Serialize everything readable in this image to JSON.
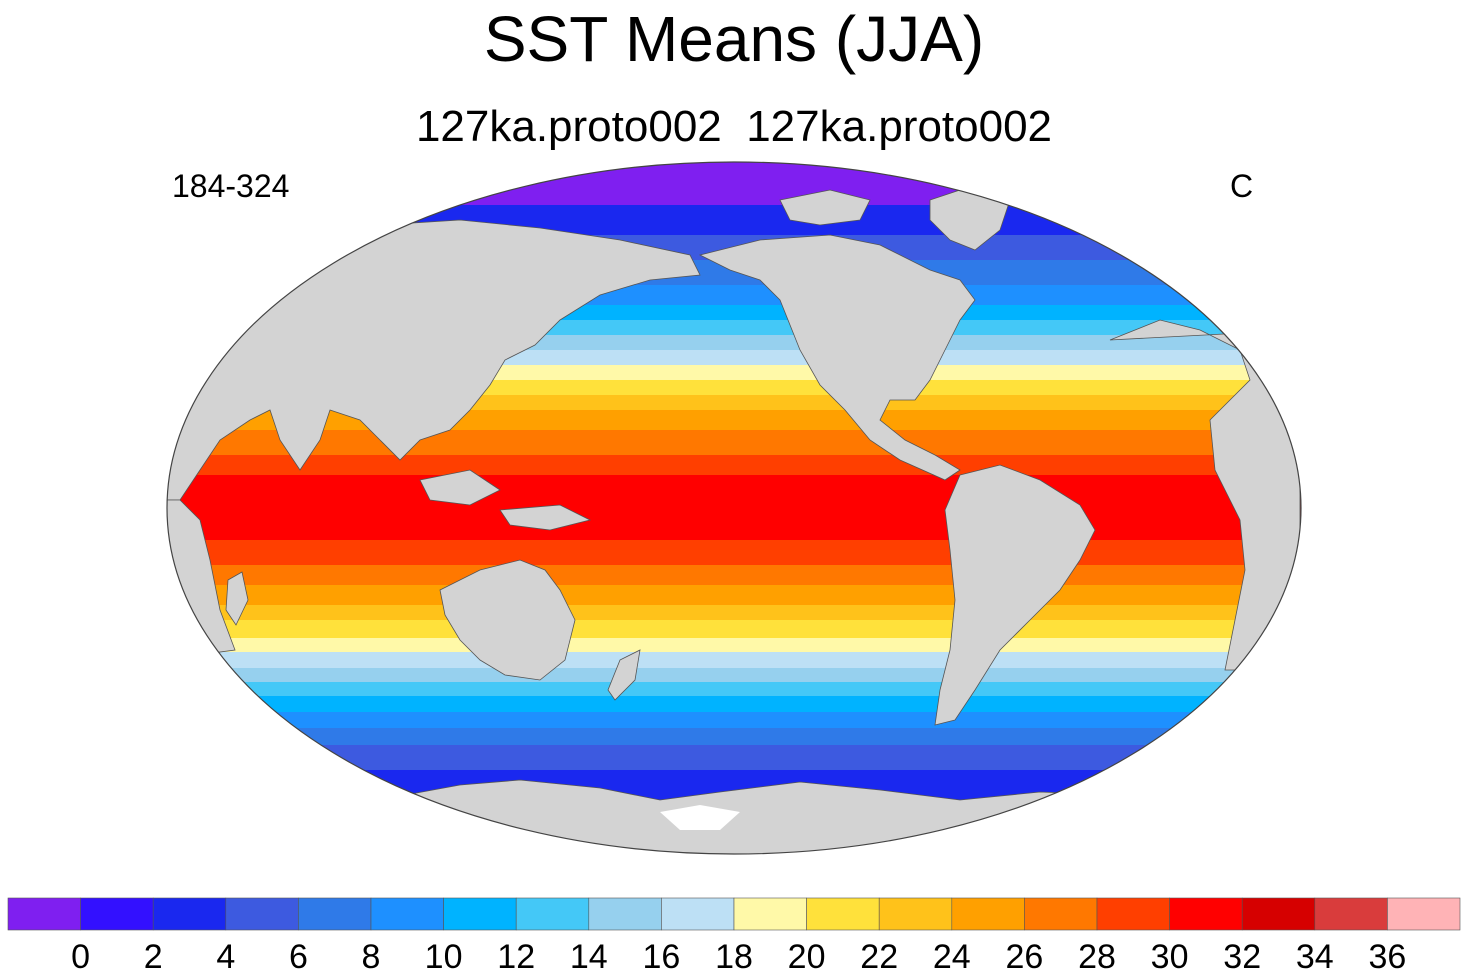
{
  "title": "SST Means (JJA)",
  "subtitle": "127ka.proto002  127ka.proto002",
  "left_label": "184-324",
  "right_label": "C",
  "colorbar": {
    "colors": [
      "#7f1ff0",
      "#3310ff",
      "#1a28ef",
      "#3d5ae0",
      "#2f7ae8",
      "#1e90ff",
      "#00b3ff",
      "#44c8f7",
      "#96d0ee",
      "#bde0f5",
      "#fff9a8",
      "#ffe13b",
      "#ffc21a",
      "#ffa000",
      "#ff7800",
      "#ff3f00",
      "#ff0000",
      "#d60000",
      "#d93c3c",
      "#ffb3b6"
    ],
    "tick_labels": [
      "0",
      "2",
      "4",
      "6",
      "8",
      "10",
      "12",
      "14",
      "16",
      "18",
      "20",
      "22",
      "24",
      "26",
      "28",
      "30",
      "32",
      "34",
      "36"
    ]
  },
  "map": {
    "projection": "Robinson",
    "ocean_colors": [
      "#7f1ff0",
      "#1a28ef",
      "#3d5ae0",
      "#2f7ae8",
      "#1e90ff",
      "#00b3ff",
      "#44c8f7",
      "#96d0ee",
      "#bde0f5",
      "#fff9a8",
      "#ffe13b",
      "#ffc21a",
      "#ffa000",
      "#ff7800",
      "#ff3f00",
      "#ff0000"
    ],
    "land_color": "#d3d3d3"
  }
}
